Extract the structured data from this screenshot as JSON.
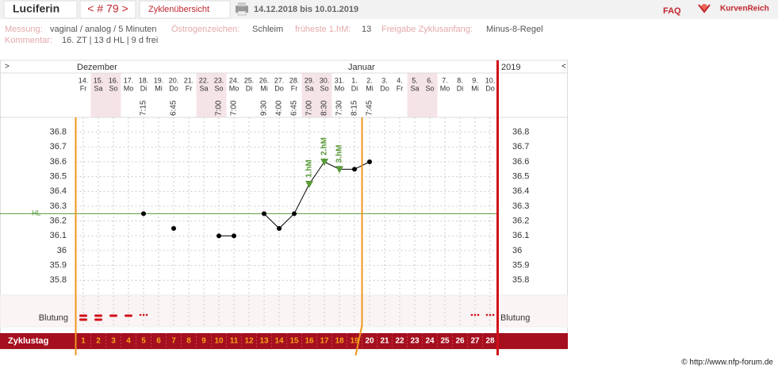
{
  "header": {
    "title": "Luciferin",
    "cycle_nav": "< # 79 >",
    "overview": "Zyklenübersicht",
    "date_range": "14.12.2018 bis 10.01.2019",
    "faq": "FAQ",
    "logo": "KurvenReich"
  },
  "info": {
    "measurement_label": "Messung:",
    "measurement": "vaginal / analog / 5 Minuten",
    "estrogen_label": "Östrogenzeichen:",
    "estrogen": "Schleim",
    "earliest_label": "früheste 1.hM:",
    "earliest": "13",
    "release_label": "Freigabe Zyklusanfang:",
    "release": "Minus-8-Regel",
    "comment_label": "Kommentar:",
    "comment": "16. ZT | 13 d HL | 9 d frei"
  },
  "chart_data": {
    "type": "line",
    "nav_left": ">",
    "nav_right": "<",
    "year": "2019",
    "month_labels": [
      "Dezember",
      null,
      null,
      null,
      null,
      null,
      null,
      null,
      null,
      null,
      null,
      null,
      null,
      null,
      null,
      null,
      null,
      null,
      "Januar",
      null,
      null,
      null,
      null,
      null,
      null,
      null,
      null,
      null
    ],
    "categories": [
      "14.",
      "15.",
      "16.",
      "17.",
      "18.",
      "19.",
      "20.",
      "21.",
      "22.",
      "23.",
      "24.",
      "25.",
      "26.",
      "27.",
      "28.",
      "29.",
      "30.",
      "31.",
      "1.",
      "2.",
      "3.",
      "4.",
      "5.",
      "6.",
      "7.",
      "8.",
      "9.",
      "10."
    ],
    "weekdays": [
      "Fr",
      "Sa",
      "So",
      "Mo",
      "Di",
      "Mi",
      "Do",
      "Fr",
      "Sa",
      "So",
      "Mo",
      "Di",
      "Mi",
      "Do",
      "Fr",
      "Sa",
      "So",
      "Mo",
      "Di",
      "Mi",
      "Do",
      "Fr",
      "Sa",
      "So",
      "Mo",
      "Di",
      "Mi",
      "Do"
    ],
    "times": [
      null,
      null,
      null,
      null,
      "7:15",
      null,
      "6:45",
      null,
      null,
      "7:00",
      "7:00",
      null,
      "9:30",
      "4:00",
      "6:45",
      "7:00",
      "8:30",
      "7:30",
      "8:15",
      "7:45",
      null,
      null,
      null,
      null,
      null,
      null,
      null,
      null
    ],
    "values": [
      null,
      null,
      null,
      null,
      36.25,
      null,
      36.15,
      null,
      null,
      36.1,
      36.1,
      null,
      36.25,
      36.15,
      36.25,
      36.45,
      36.6,
      36.55,
      36.55,
      36.6,
      null,
      null,
      null,
      null,
      null,
      null,
      null,
      null
    ],
    "color": "#000000",
    "peak_labels": [
      null,
      null,
      null,
      null,
      null,
      null,
      null,
      null,
      null,
      null,
      null,
      null,
      null,
      null,
      null,
      "1.hM",
      "2.hM",
      "3.hM",
      null,
      null,
      null,
      null,
      null,
      null,
      null,
      null,
      null,
      null
    ],
    "ylim": [
      35.7,
      36.9
    ],
    "yticks": [
      35.8,
      35.9,
      36,
      36.1,
      36.2,
      36.3,
      36.4,
      36.5,
      36.6,
      36.7,
      36.8
    ],
    "grid": true,
    "hl": {
      "label": "HL",
      "value": 36.25
    },
    "bleeding_label": "Blutung",
    "bleeding": [
      3,
      3,
      2,
      2,
      1,
      null,
      null,
      null,
      null,
      null,
      null,
      null,
      null,
      null,
      null,
      null,
      null,
      null,
      null,
      null,
      null,
      null,
      null,
      null,
      null,
      null,
      1,
      1
    ],
    "cycle_day_label": "Zyklustag",
    "cycle_days": [
      1,
      2,
      3,
      4,
      5,
      6,
      7,
      8,
      9,
      10,
      11,
      12,
      13,
      14,
      15,
      16,
      17,
      18,
      19,
      20,
      21,
      22,
      23,
      24,
      25,
      26,
      27,
      28
    ]
  },
  "footer": "© http://www.nfp-forum.de"
}
